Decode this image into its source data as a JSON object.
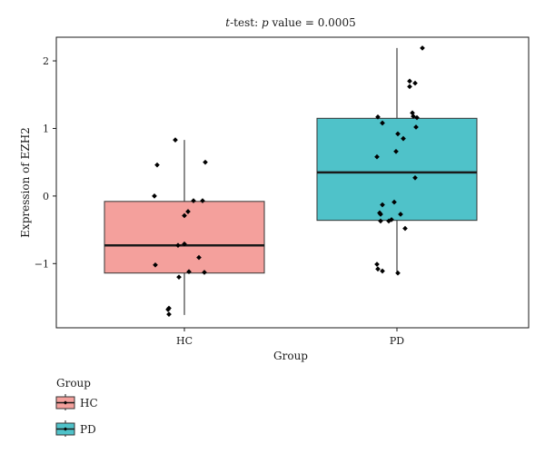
{
  "chart_data": {
    "type": "box",
    "title_prefix": "t",
    "title_mid": "-test: ",
    "title_p": "p",
    "title_suffix": " value = 0.0005",
    "xlabel": "Group",
    "ylabel": "Expression of EZH2",
    "categories": [
      "HC",
      "PD"
    ],
    "ylim": [
      -1.95,
      2.35
    ],
    "yticks": [
      -1,
      0,
      1,
      2
    ],
    "ytick_labels": [
      "−1",
      "0",
      "1",
      "2"
    ],
    "grid": false,
    "legend": {
      "title": "Group",
      "placement": "bottom-left",
      "entries": [
        "HC",
        "PD"
      ]
    },
    "colors": {
      "HC": "#f4a09c",
      "PD": "#4fc2c9",
      "points": "#000000",
      "line": "#1a1a1a"
    },
    "boxes": [
      {
        "name": "HC",
        "q1": -1.14,
        "median": -0.73,
        "q3": -0.08,
        "whisker_low": -1.76,
        "whisker_high": 0.83
      },
      {
        "name": "PD",
        "q1": -0.36,
        "median": 0.35,
        "q3": 1.15,
        "whisker_low": -1.15,
        "whisker_high": 2.19
      }
    ],
    "points": [
      {
        "group": "HC",
        "x_jitter": -0.1,
        "y": 0.83
      },
      {
        "group": "HC",
        "x_jitter": -0.3,
        "y": 0.46
      },
      {
        "group": "HC",
        "x_jitter": 0.23,
        "y": 0.5
      },
      {
        "group": "HC",
        "x_jitter": -0.33,
        "y": 0.0
      },
      {
        "group": "HC",
        "x_jitter": 0.1,
        "y": -0.07
      },
      {
        "group": "HC",
        "x_jitter": 0.2,
        "y": -0.07
      },
      {
        "group": "HC",
        "x_jitter": 0.04,
        "y": -0.23
      },
      {
        "group": "HC",
        "x_jitter": 0.0,
        "y": -0.29
      },
      {
        "group": "HC",
        "x_jitter": -0.07,
        "y": -0.73
      },
      {
        "group": "HC",
        "x_jitter": 0.0,
        "y": -0.71
      },
      {
        "group": "HC",
        "x_jitter": 0.16,
        "y": -0.91
      },
      {
        "group": "HC",
        "x_jitter": -0.32,
        "y": -1.02
      },
      {
        "group": "HC",
        "x_jitter": 0.05,
        "y": -1.12
      },
      {
        "group": "HC",
        "x_jitter": 0.22,
        "y": -1.13
      },
      {
        "group": "HC",
        "x_jitter": -0.06,
        "y": -1.2
      },
      {
        "group": "HC",
        "x_jitter": -0.17,
        "y": -1.66
      },
      {
        "group": "HC",
        "x_jitter": -0.18,
        "y": -1.68
      },
      {
        "group": "HC",
        "x_jitter": -0.17,
        "y": -1.75
      },
      {
        "group": "PD",
        "x_jitter": 0.28,
        "y": 2.19
      },
      {
        "group": "PD",
        "x_jitter": 0.14,
        "y": 1.7
      },
      {
        "group": "PD",
        "x_jitter": 0.2,
        "y": 1.67
      },
      {
        "group": "PD",
        "x_jitter": 0.14,
        "y": 1.62
      },
      {
        "group": "PD",
        "x_jitter": 0.17,
        "y": 1.23
      },
      {
        "group": "PD",
        "x_jitter": 0.18,
        "y": 1.18
      },
      {
        "group": "PD",
        "x_jitter": -0.21,
        "y": 1.17
      },
      {
        "group": "PD",
        "x_jitter": 0.22,
        "y": 1.16
      },
      {
        "group": "PD",
        "x_jitter": -0.16,
        "y": 1.08
      },
      {
        "group": "PD",
        "x_jitter": 0.21,
        "y": 1.02
      },
      {
        "group": "PD",
        "x_jitter": 0.01,
        "y": 0.92
      },
      {
        "group": "PD",
        "x_jitter": 0.07,
        "y": 0.85
      },
      {
        "group": "PD",
        "x_jitter": -0.01,
        "y": 0.66
      },
      {
        "group": "PD",
        "x_jitter": -0.22,
        "y": 0.58
      },
      {
        "group": "PD",
        "x_jitter": 0.2,
        "y": 0.27
      },
      {
        "group": "PD",
        "x_jitter": -0.03,
        "y": -0.09
      },
      {
        "group": "PD",
        "x_jitter": -0.16,
        "y": -0.13
      },
      {
        "group": "PD",
        "x_jitter": -0.19,
        "y": -0.25
      },
      {
        "group": "PD",
        "x_jitter": -0.18,
        "y": -0.27
      },
      {
        "group": "PD",
        "x_jitter": 0.04,
        "y": -0.27
      },
      {
        "group": "PD",
        "x_jitter": -0.18,
        "y": -0.37
      },
      {
        "group": "PD",
        "x_jitter": -0.09,
        "y": -0.37
      },
      {
        "group": "PD",
        "x_jitter": -0.06,
        "y": -0.35
      },
      {
        "group": "PD",
        "x_jitter": 0.09,
        "y": -0.48
      },
      {
        "group": "PD",
        "x_jitter": -0.22,
        "y": -1.01
      },
      {
        "group": "PD",
        "x_jitter": -0.21,
        "y": -1.08
      },
      {
        "group": "PD",
        "x_jitter": -0.16,
        "y": -1.11
      },
      {
        "group": "PD",
        "x_jitter": 0.01,
        "y": -1.14
      }
    ]
  }
}
